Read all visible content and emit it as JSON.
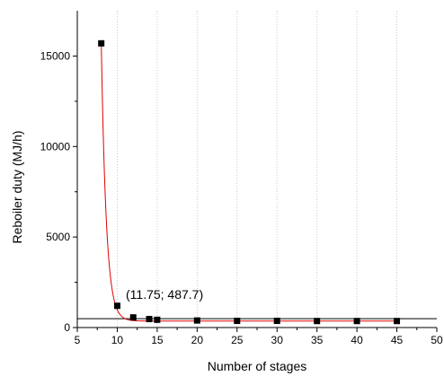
{
  "chart_data": {
    "type": "scatter",
    "title": "",
    "xlabel": "Number of stages",
    "ylabel": "Reboiler duty (MJ/h)",
    "xlim": [
      5,
      50
    ],
    "ylim": [
      0,
      17500
    ],
    "xticks": [
      5,
      10,
      15,
      20,
      25,
      30,
      35,
      40,
      45,
      50
    ],
    "yticks": [
      0,
      5000,
      10000,
      15000
    ],
    "grid": "vertical dotted",
    "series": [
      {
        "kind": "points",
        "color": "#000000",
        "marker": "square",
        "x": [
          8,
          10,
          12,
          14,
          15,
          20,
          25,
          30,
          35,
          40,
          45
        ],
        "y": [
          15700,
          1200,
          560,
          470,
          430,
          390,
          370,
          370,
          360,
          360,
          360
        ]
      },
      {
        "kind": "fit-curve",
        "color": "#e00000"
      }
    ],
    "reference_line": {
      "y": 487.7,
      "color": "#000000"
    },
    "annotation": {
      "text": "(11.75; 487.7)",
      "x": 11.75,
      "y": 487.7
    }
  }
}
